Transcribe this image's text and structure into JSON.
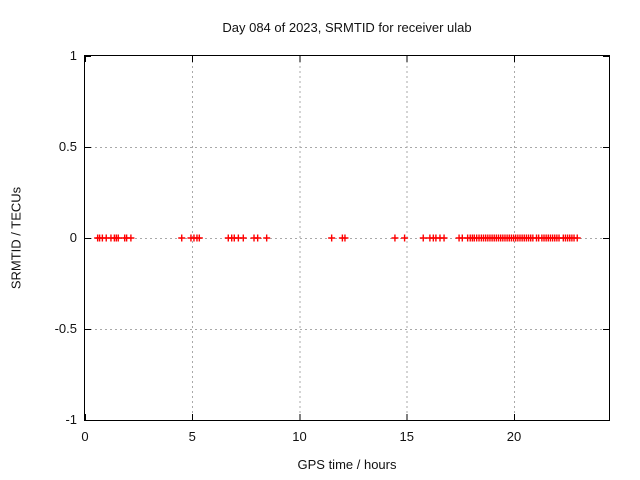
{
  "chart_data": {
    "type": "scatter",
    "title": "Day 084 of 2023, SRMTID for receiver ulab",
    "xlabel": "GPS time / hours",
    "ylabel": "SRMTID / TECUs",
    "xlim": [
      0,
      24.43
    ],
    "ylim": [
      -1,
      1
    ],
    "x_ticks": [
      {
        "v": 0,
        "label": "0"
      },
      {
        "v": 5,
        "label": "5"
      },
      {
        "v": 10,
        "label": "10"
      },
      {
        "v": 15,
        "label": "15"
      },
      {
        "v": 20,
        "label": "20"
      }
    ],
    "y_ticks": [
      {
        "v": 1,
        "label": "1"
      },
      {
        "v": 0.5,
        "label": "0.5"
      },
      {
        "v": 0,
        "label": "0"
      },
      {
        "v": -0.5,
        "label": "-0.5"
      },
      {
        "v": -1,
        "label": "-1"
      }
    ],
    "grid": true,
    "grid_color": "#a9a9a9",
    "axis_color": "#000000",
    "marker": {
      "shape": "plus",
      "color": "#ff0000",
      "size": 7,
      "stroke_width": 1.4
    },
    "legend": "none",
    "series": [
      {
        "name": "SRMTID",
        "y": 0,
        "x": [
          0.59,
          0.68,
          0.81,
          0.99,
          1.21,
          1.37,
          1.46,
          1.55,
          1.85,
          1.94,
          2.14,
          4.51,
          4.94,
          5.08,
          5.22,
          5.33,
          6.68,
          6.84,
          6.96,
          7.15,
          7.38,
          7.88,
          8.05,
          8.47,
          11.5,
          12.0,
          12.12,
          14.45,
          14.9,
          15.77,
          16.08,
          16.24,
          16.36,
          16.55,
          16.74,
          17.44,
          17.59,
          17.84,
          17.96,
          18.06,
          18.15,
          18.26,
          18.37,
          18.48,
          18.58,
          18.68,
          18.78,
          18.88,
          18.98,
          19.08,
          19.18,
          19.28,
          19.38,
          19.48,
          19.58,
          19.68,
          19.78,
          19.88,
          19.98,
          20.08,
          20.18,
          20.28,
          20.38,
          20.48,
          20.58,
          20.68,
          20.78,
          20.88,
          21.05,
          21.15,
          21.3,
          21.4,
          21.5,
          21.6,
          21.7,
          21.8,
          21.9,
          22.0,
          22.1,
          22.3,
          22.4,
          22.5,
          22.6,
          22.7,
          22.8,
          22.95
        ]
      }
    ]
  }
}
